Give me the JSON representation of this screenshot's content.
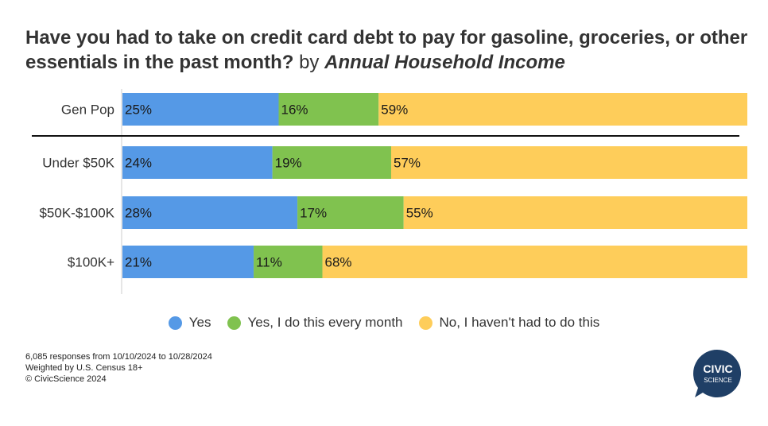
{
  "title": {
    "main": "Have you had to take on credit card debt to pay for gasoline, groceries, or other essentials in the past month?",
    "by": "by",
    "dimension": "Annual Household Income"
  },
  "chart_data": {
    "type": "bar",
    "orientation": "horizontal",
    "stacked": true,
    "normalized": true,
    "categories": [
      "Gen Pop",
      "Under $50K",
      "$50K-$100K",
      "$100K+"
    ],
    "series": [
      {
        "name": "Yes",
        "color": "#5599e6",
        "values": [
          25,
          24,
          28,
          21
        ],
        "labels": [
          "25%",
          "24%",
          "28%",
          "21%"
        ]
      },
      {
        "name": "Yes, I do this every month",
        "color": "#80c24f",
        "values": [
          16,
          19,
          17,
          11
        ],
        "labels": [
          "16%",
          "19%",
          "17%",
          "11%"
        ]
      },
      {
        "name": "No, I haven't had to do this",
        "color": "#fecd5a",
        "values": [
          59,
          57,
          55,
          68
        ],
        "labels": [
          "59%",
          "57%",
          "55%",
          "68%"
        ]
      }
    ],
    "legend_position": "bottom",
    "grid": false
  },
  "legend": [
    {
      "label": "Yes",
      "color": "#5599e6"
    },
    {
      "label": "Yes, I do this every month",
      "color": "#80c24f"
    },
    {
      "label": "No, I haven't had to do this",
      "color": "#fecd5a"
    }
  ],
  "footnotes": {
    "line1": "6,085 responses from 10/10/2024 to 10/28/2024",
    "line2": "Weighted by U.S. Census 18+",
    "line3": "© CivicScience 2024"
  },
  "logo": {
    "line1": "CIVIC",
    "line2": "SCIENCE",
    "color": "#1f3f66"
  }
}
